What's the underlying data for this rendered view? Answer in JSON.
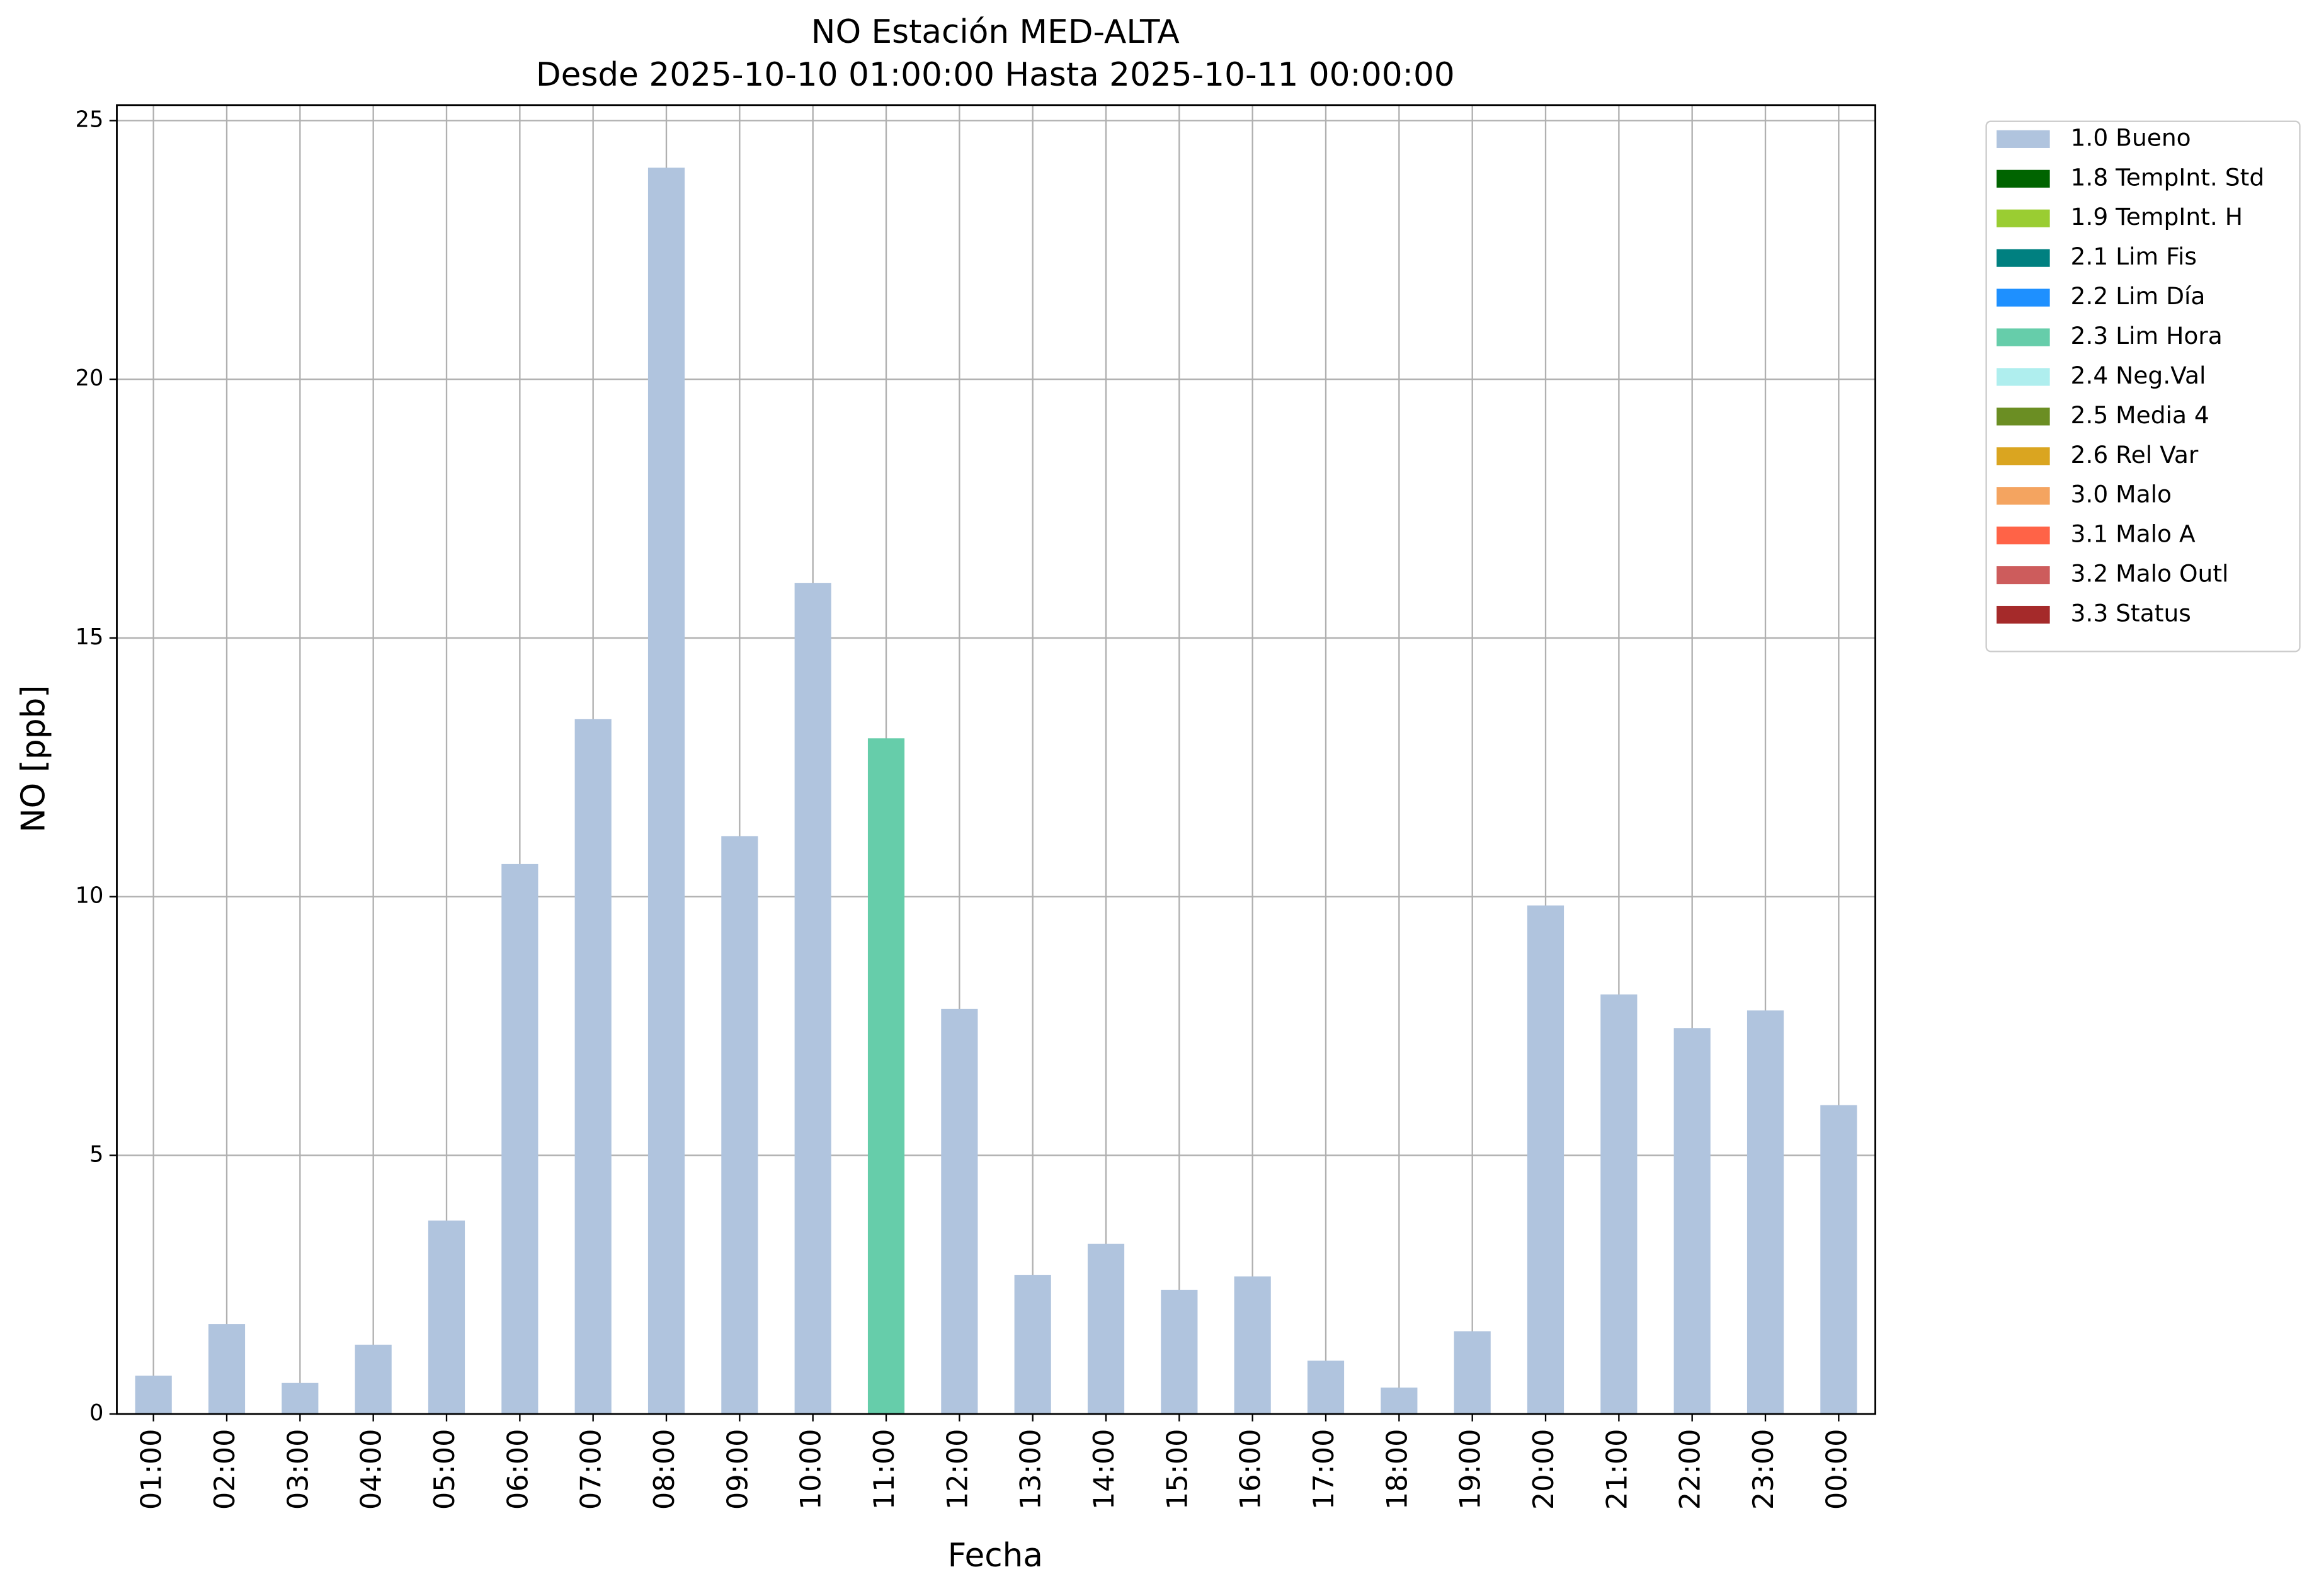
{
  "chart_data": {
    "type": "stacked_bar",
    "title": "NO Estación MED-ALTA",
    "subtitle": "Desde 2025-10-10 01:00:00 Hasta 2025-10-11 00:00:00",
    "x_label": "Fecha",
    "y_label": "NO [ppb]",
    "categories": [
      "01:00",
      "02:00",
      "03:00",
      "04:00",
      "05:00",
      "06:00",
      "07:00",
      "08:00",
      "09:00",
      "10:00",
      "11:00",
      "12:00",
      "13:00",
      "14:00",
      "15:00",
      "16:00",
      "17:00",
      "18:00",
      "19:00",
      "20:00",
      "21:00",
      "22:00",
      "23:00",
      "00:00"
    ],
    "series": [
      {
        "name": "1.0 Bueno",
        "color": "#b0c4de",
        "values": [
          0.74,
          1.74,
          0.6,
          1.34,
          3.74,
          10.63,
          13.43,
          24.09,
          11.17,
          16.06,
          null,
          7.83,
          2.69,
          3.29,
          2.4,
          2.66,
          1.03,
          0.51,
          1.6,
          9.83,
          8.11,
          7.46,
          7.8,
          5.97
        ]
      },
      {
        "name": "1.8 TempInt. Std",
        "color": "#006400",
        "values": [
          null,
          null,
          null,
          null,
          null,
          null,
          null,
          null,
          null,
          null,
          null,
          null,
          null,
          null,
          null,
          null,
          null,
          null,
          null,
          null,
          null,
          null,
          null,
          null
        ]
      },
      {
        "name": "1.9 TempInt. H",
        "color": "#9acd32",
        "values": [
          null,
          null,
          null,
          null,
          null,
          null,
          null,
          null,
          null,
          null,
          null,
          null,
          null,
          null,
          null,
          null,
          null,
          null,
          null,
          null,
          null,
          null,
          null,
          null
        ]
      },
      {
        "name": "2.1 Lim Fis",
        "color": "#008080",
        "values": [
          null,
          null,
          null,
          null,
          null,
          null,
          null,
          null,
          null,
          null,
          null,
          null,
          null,
          null,
          null,
          null,
          null,
          null,
          null,
          null,
          null,
          null,
          null,
          null
        ]
      },
      {
        "name": "2.2 Lim Día",
        "color": "#1e90ff",
        "values": [
          null,
          null,
          null,
          null,
          null,
          null,
          null,
          null,
          null,
          null,
          null,
          null,
          null,
          null,
          null,
          null,
          null,
          null,
          null,
          null,
          null,
          null,
          null,
          null
        ]
      },
      {
        "name": "2.3 Lim Hora",
        "color": "#66cdaa",
        "values": [
          null,
          null,
          null,
          null,
          null,
          null,
          null,
          null,
          null,
          null,
          13.06,
          null,
          null,
          null,
          null,
          null,
          null,
          null,
          null,
          null,
          null,
          null,
          null,
          null
        ]
      },
      {
        "name": "2.4 Neg.Val",
        "color": "#afeeee",
        "values": [
          null,
          null,
          null,
          null,
          null,
          null,
          null,
          null,
          null,
          null,
          null,
          null,
          null,
          null,
          null,
          null,
          null,
          null,
          null,
          null,
          null,
          null,
          null,
          null
        ]
      },
      {
        "name": "2.5 Media 4",
        "color": "#6b8e23",
        "values": [
          null,
          null,
          null,
          null,
          null,
          null,
          null,
          null,
          null,
          null,
          null,
          null,
          null,
          null,
          null,
          null,
          null,
          null,
          null,
          null,
          null,
          null,
          null,
          null
        ]
      },
      {
        "name": "2.6 Rel Var",
        "color": "#daa520",
        "values": [
          null,
          null,
          null,
          null,
          null,
          null,
          null,
          null,
          null,
          null,
          null,
          null,
          null,
          null,
          null,
          null,
          null,
          null,
          null,
          null,
          null,
          null,
          null,
          null
        ]
      },
      {
        "name": "3.0 Malo",
        "color": "#f4a460",
        "values": [
          null,
          null,
          null,
          null,
          null,
          null,
          null,
          null,
          null,
          null,
          null,
          null,
          null,
          null,
          null,
          null,
          null,
          null,
          null,
          null,
          null,
          null,
          null,
          null
        ]
      },
      {
        "name": "3.1 Malo A",
        "color": "#ff6347",
        "values": [
          null,
          null,
          null,
          null,
          null,
          null,
          null,
          null,
          null,
          null,
          null,
          null,
          null,
          null,
          null,
          null,
          null,
          null,
          null,
          null,
          null,
          null,
          null,
          null
        ]
      },
      {
        "name": "3.2 Malo Outl",
        "color": "#cd5c5c",
        "values": [
          null,
          null,
          null,
          null,
          null,
          null,
          null,
          null,
          null,
          null,
          null,
          null,
          null,
          null,
          null,
          null,
          null,
          null,
          null,
          null,
          null,
          null,
          null,
          null
        ]
      },
      {
        "name": "3.3 Status",
        "color": "#a52a2a",
        "values": [
          null,
          null,
          null,
          null,
          null,
          null,
          null,
          null,
          null,
          null,
          null,
          null,
          null,
          null,
          null,
          null,
          null,
          null,
          null,
          null,
          null,
          null,
          null,
          null
        ]
      }
    ],
    "ylim": [
      0,
      25.3
    ],
    "yticks": [
      0,
      5,
      10,
      15,
      20,
      25
    ],
    "grid": true,
    "legend": "outside-right"
  }
}
